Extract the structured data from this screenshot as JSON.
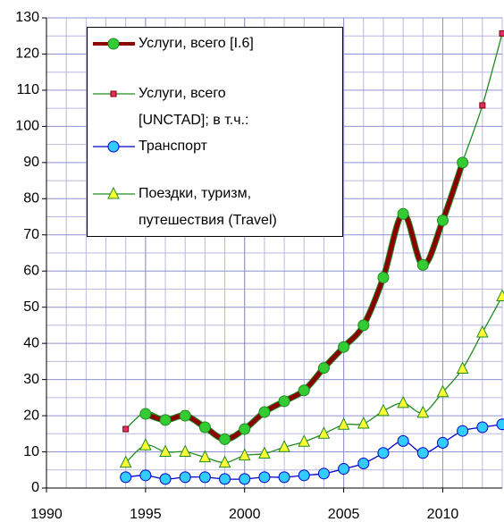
{
  "chart_data": {
    "type": "line",
    "x": [
      1994,
      1995,
      1996,
      1997,
      1998,
      1999,
      2000,
      2001,
      2002,
      2003,
      2004,
      2005,
      2006,
      2007,
      2008,
      2009,
      2010,
      2011,
      2012,
      2013
    ],
    "series": [
      {
        "name": "Услуги, всего [I.6]",
        "color": "#8b0000",
        "marker": "circle",
        "marker_color": "#33cc33",
        "values": [
          null,
          20.5,
          18.8,
          20,
          16.8,
          13.5,
          16.3,
          21,
          24,
          27,
          33.2,
          39,
          45,
          58.2,
          75.8,
          61.7,
          74,
          90,
          null,
          null
        ]
      },
      {
        "name": "Услуги, всего [UNCTAD]; в т.ч.:",
        "color": "#228b22",
        "marker": "square",
        "marker_color": "#e0306a",
        "values": [
          16.3,
          21,
          19.4,
          20.6,
          17,
          13.7,
          16.8,
          21.2,
          24,
          27.2,
          33.4,
          39,
          45.2,
          58.5,
          76,
          62,
          74.2,
          90.2,
          105.8,
          125.7
        ]
      },
      {
        "name": "Транспорт",
        "color": "#0000cc",
        "marker": "circle",
        "marker_color": "#33ccff",
        "values": [
          3,
          3.5,
          2.5,
          3,
          3,
          2.5,
          2.5,
          3,
          3,
          3.5,
          4,
          5.3,
          6.8,
          9.7,
          13,
          9.7,
          12.5,
          15.8,
          16.8,
          17.6
        ]
      },
      {
        "name": "Поездки, туризм, путешествия (Travel)",
        "color": "#228b22",
        "marker": "triangle",
        "marker_color": "#ffff33",
        "values": [
          7,
          11.8,
          10,
          10,
          8.5,
          7,
          9,
          9.5,
          11.3,
          12.8,
          15,
          17.5,
          17.8,
          21.3,
          23.5,
          20.8,
          26.5,
          33,
          43,
          53
        ]
      }
    ],
    "xlim": [
      1990,
      2013
    ],
    "xticks": [
      1990,
      1995,
      2000,
      2005,
      2010
    ],
    "ylim": [
      0,
      130
    ],
    "yticks": [
      0,
      10,
      20,
      30,
      40,
      50,
      60,
      70,
      80,
      90,
      100,
      110,
      120,
      130
    ],
    "grid": true
  }
}
